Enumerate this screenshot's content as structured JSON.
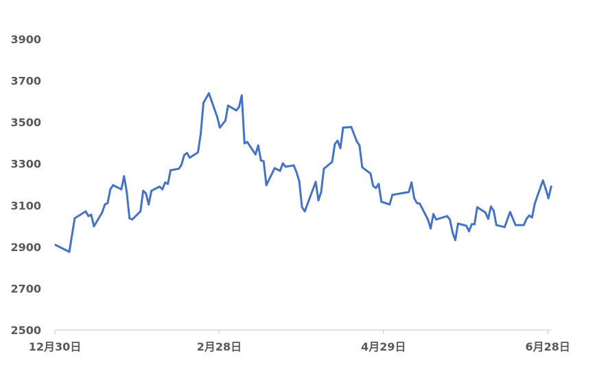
{
  "chart_data": {
    "type": "line",
    "title": "",
    "xlabel": "",
    "ylabel": "",
    "ylim": [
      2500,
      3900
    ],
    "yticks": [
      "2500",
      "2700",
      "2900",
      "3100",
      "3300",
      "3500",
      "3700",
      "3900"
    ],
    "xticks": [
      {
        "date": "12/30",
        "label": "12月30日"
      },
      {
        "date": "2/28",
        "label": "2月28日"
      },
      {
        "date": "4/29",
        "label": "4月29日"
      },
      {
        "date": "6/28",
        "label": "6月28日"
      }
    ],
    "grid": false,
    "line_color": "#4472C4",
    "axis_color": "#D9D9D9",
    "points": [
      [
        "12/30",
        2909
      ],
      [
        "1/4",
        2876
      ],
      [
        "1/6",
        3038
      ],
      [
        "1/10",
        3071
      ],
      [
        "1/11",
        3048
      ],
      [
        "1/12",
        3055
      ],
      [
        "1/13",
        2999
      ],
      [
        "1/16",
        3065
      ],
      [
        "1/17",
        3104
      ],
      [
        "1/18",
        3111
      ],
      [
        "1/19",
        3177
      ],
      [
        "1/20",
        3197
      ],
      [
        "1/23",
        3177
      ],
      [
        "1/24",
        3240
      ],
      [
        "1/25",
        3164
      ],
      [
        "1/26",
        3038
      ],
      [
        "1/27",
        3032
      ],
      [
        "1/30",
        3071
      ],
      [
        "1/31",
        3170
      ],
      [
        "2/1",
        3157
      ],
      [
        "2/2",
        3104
      ],
      [
        "2/3",
        3170
      ],
      [
        "2/6",
        3190
      ],
      [
        "2/7",
        3177
      ],
      [
        "2/8",
        3210
      ],
      [
        "2/9",
        3203
      ],
      [
        "2/10",
        3269
      ],
      [
        "2/13",
        3276
      ],
      [
        "2/14",
        3296
      ],
      [
        "2/15",
        3342
      ],
      [
        "2/16",
        3352
      ],
      [
        "2/17",
        3329
      ],
      [
        "2/20",
        3355
      ],
      [
        "2/21",
        3444
      ],
      [
        "2/22",
        3593
      ],
      [
        "2/24",
        3639
      ],
      [
        "2/27",
        3527
      ],
      [
        "2/28",
        3474
      ],
      [
        "3/2",
        3507
      ],
      [
        "3/3",
        3580
      ],
      [
        "3/6",
        3557
      ],
      [
        "3/7",
        3573
      ],
      [
        "3/8",
        3629
      ],
      [
        "3/9",
        3398
      ],
      [
        "3/10",
        3405
      ],
      [
        "3/13",
        3345
      ],
      [
        "3/14",
        3388
      ],
      [
        "3/15",
        3316
      ],
      [
        "3/16",
        3312
      ],
      [
        "3/17",
        3197
      ],
      [
        "3/20",
        3279
      ],
      [
        "3/22",
        3266
      ],
      [
        "3/23",
        3302
      ],
      [
        "3/24",
        3286
      ],
      [
        "3/27",
        3292
      ],
      [
        "3/28",
        3259
      ],
      [
        "3/29",
        3216
      ],
      [
        "3/30",
        3091
      ],
      [
        "3/31",
        3071
      ],
      [
        "4/4",
        3213
      ],
      [
        "4/5",
        3124
      ],
      [
        "4/6",
        3164
      ],
      [
        "4/7",
        3276
      ],
      [
        "4/10",
        3309
      ],
      [
        "4/11",
        3395
      ],
      [
        "4/12",
        3411
      ],
      [
        "4/13",
        3375
      ],
      [
        "4/14",
        3474
      ],
      [
        "4/17",
        3477
      ],
      [
        "4/19",
        3408
      ],
      [
        "4/20",
        3388
      ],
      [
        "4/21",
        3283
      ],
      [
        "4/24",
        3253
      ],
      [
        "4/25",
        3193
      ],
      [
        "4/26",
        3183
      ],
      [
        "4/27",
        3203
      ],
      [
        "4/28",
        3117
      ],
      [
        "5/1",
        3104
      ],
      [
        "5/2",
        3150
      ],
      [
        "5/8",
        3164
      ],
      [
        "5/9",
        3210
      ],
      [
        "5/10",
        3134
      ],
      [
        "5/11",
        3111
      ],
      [
        "5/12",
        3108
      ],
      [
        "5/15",
        3032
      ],
      [
        "5/16",
        2989
      ],
      [
        "5/17",
        3058
      ],
      [
        "5/18",
        3032
      ],
      [
        "5/22",
        3048
      ],
      [
        "5/23",
        3032
      ],
      [
        "5/24",
        2969
      ],
      [
        "5/25",
        2933
      ],
      [
        "5/26",
        3012
      ],
      [
        "5/29",
        3002
      ],
      [
        "5/30",
        2975
      ],
      [
        "5/31",
        3009
      ],
      [
        "6/1",
        3009
      ],
      [
        "6/2",
        3091
      ],
      [
        "6/5",
        3065
      ],
      [
        "6/6",
        3035
      ],
      [
        "6/7",
        3094
      ],
      [
        "6/8",
        3074
      ],
      [
        "6/9",
        3005
      ],
      [
        "6/12",
        2995
      ],
      [
        "6/14",
        3068
      ],
      [
        "6/16",
        3005
      ],
      [
        "6/19",
        3005
      ],
      [
        "6/20",
        3035
      ],
      [
        "6/21",
        3051
      ],
      [
        "6/22",
        3042
      ],
      [
        "6/23",
        3108
      ],
      [
        "6/26",
        3220
      ],
      [
        "6/27",
        3180
      ],
      [
        "6/28",
        3134
      ],
      [
        "6/29",
        3190
      ]
    ]
  }
}
